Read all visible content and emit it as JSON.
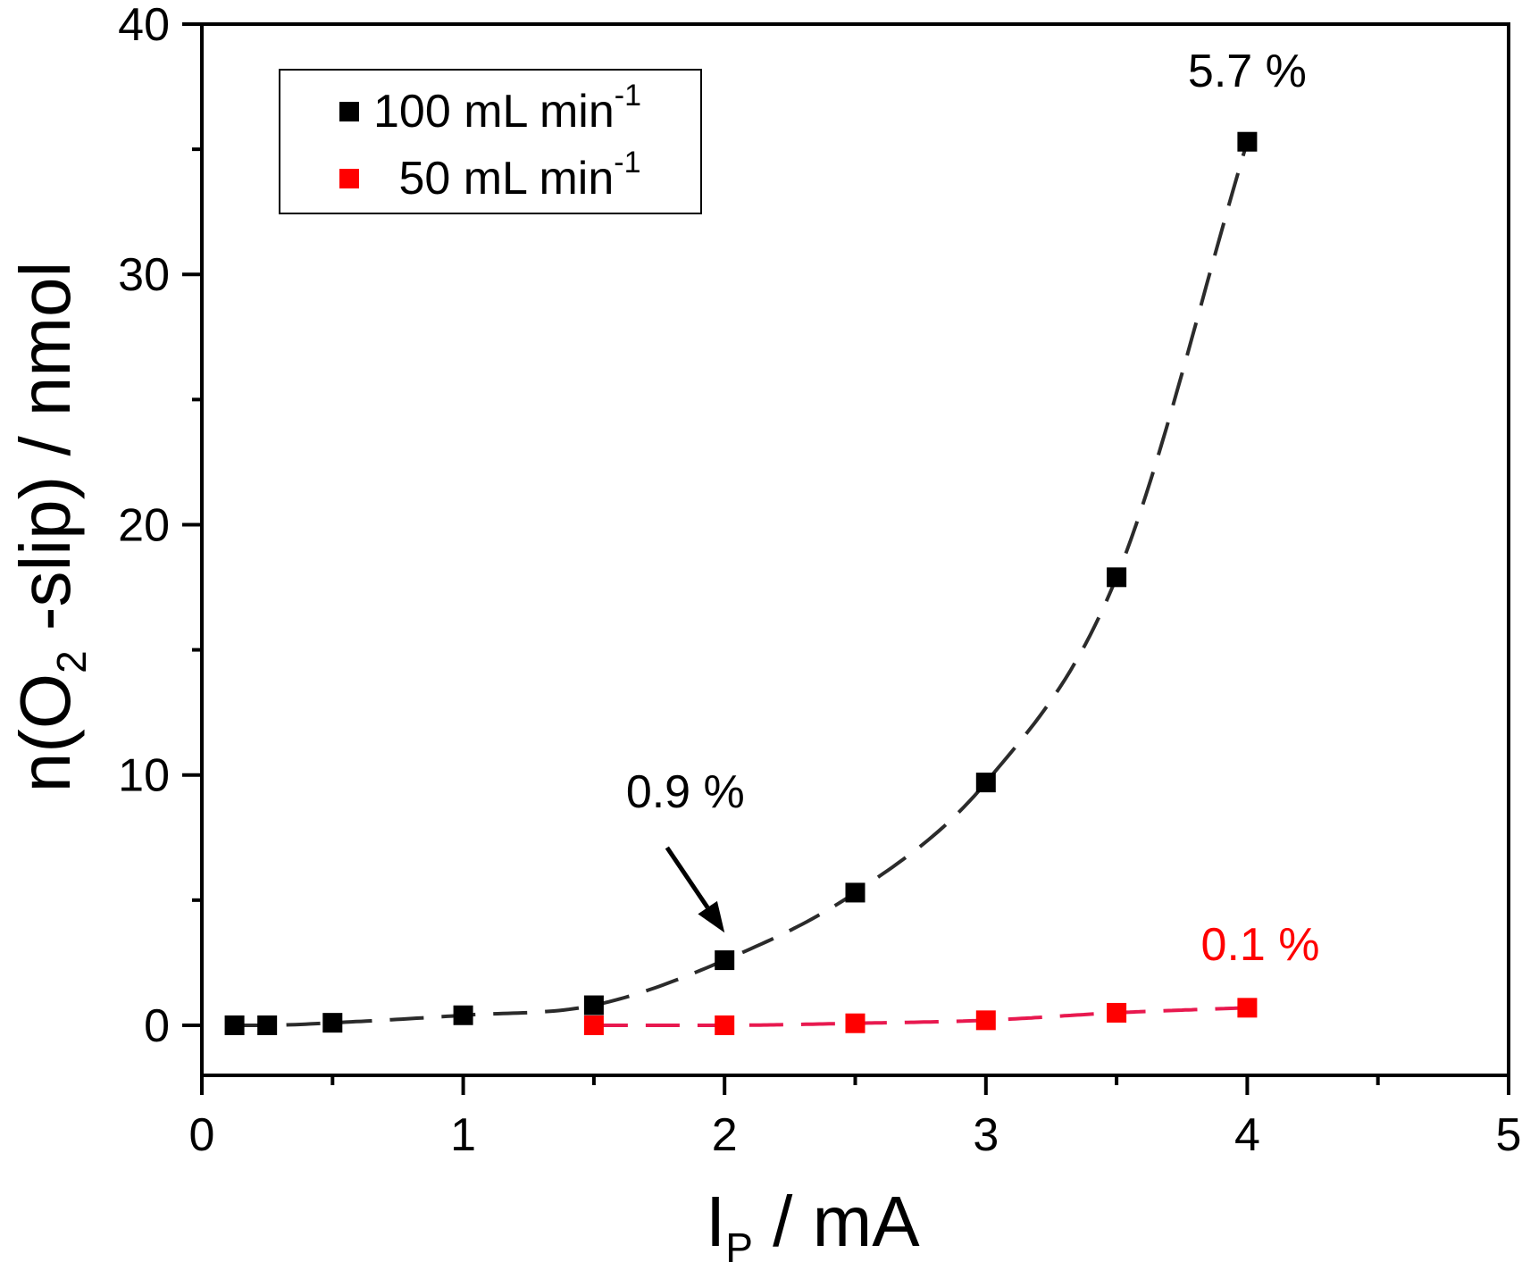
{
  "chart_data": {
    "type": "scatter",
    "title": "",
    "xlabel": "I",
    "xlabel_sub": "P",
    "xlabel_unit": " / mA",
    "ylabel": "n(O",
    "ylabel_sub": "2",
    "ylabel_rest": " -slip) / nmol",
    "xlim": [
      0,
      5
    ],
    "ylim": [
      -2,
      40
    ],
    "x_ticks": [
      0,
      1,
      2,
      3,
      4,
      5
    ],
    "x_tick_labels": [
      "0",
      "1",
      "2",
      "3",
      "4",
      "5"
    ],
    "x_minor_ticks": [
      0.5,
      1.5,
      2.5,
      3.5,
      4.5
    ],
    "y_ticks": [
      0,
      10,
      20,
      30,
      40
    ],
    "y_tick_labels": [
      "0",
      "10",
      "20",
      "30",
      "40"
    ],
    "y_minor_ticks": [
      5,
      15,
      25,
      35
    ],
    "grid": false,
    "legend_position": "top-left",
    "series": [
      {
        "name": "100 mL min",
        "name_sup": "-1",
        "color": "#000000",
        "fit_color": "#2b2b2b",
        "marker": "square",
        "fit_line": "dashed",
        "x": [
          0.125,
          0.25,
          0.5,
          1.0,
          1.5,
          2.0,
          2.5,
          3.0,
          3.5,
          4.0
        ],
        "y": [
          0.0,
          0.0,
          0.1,
          0.4,
          0.8,
          2.6,
          5.3,
          9.7,
          17.9,
          35.3
        ]
      },
      {
        "name": " 50 mL min",
        "name_sup": "-1",
        "color": "#ff0000",
        "fit_color": "#e8194f",
        "marker": "square",
        "fit_line": "dashed",
        "x": [
          1.5,
          2.0,
          2.5,
          3.0,
          3.5,
          4.0
        ],
        "y": [
          0.0,
          0.0,
          0.08,
          0.2,
          0.5,
          0.7
        ]
      }
    ],
    "annotations": [
      {
        "text": "5.7 %",
        "color": "#000000",
        "x": 4.0,
        "y": 37.5
      },
      {
        "text": "0.9 %",
        "color": "#000000",
        "x": 1.85,
        "y": 8.7,
        "arrow_to": [
          2.0,
          3.7
        ],
        "arrow_from": [
          1.78,
          7.1
        ]
      },
      {
        "text": "0.1 %",
        "color": "#ff0000",
        "x": 4.05,
        "y": 2.6
      }
    ]
  }
}
